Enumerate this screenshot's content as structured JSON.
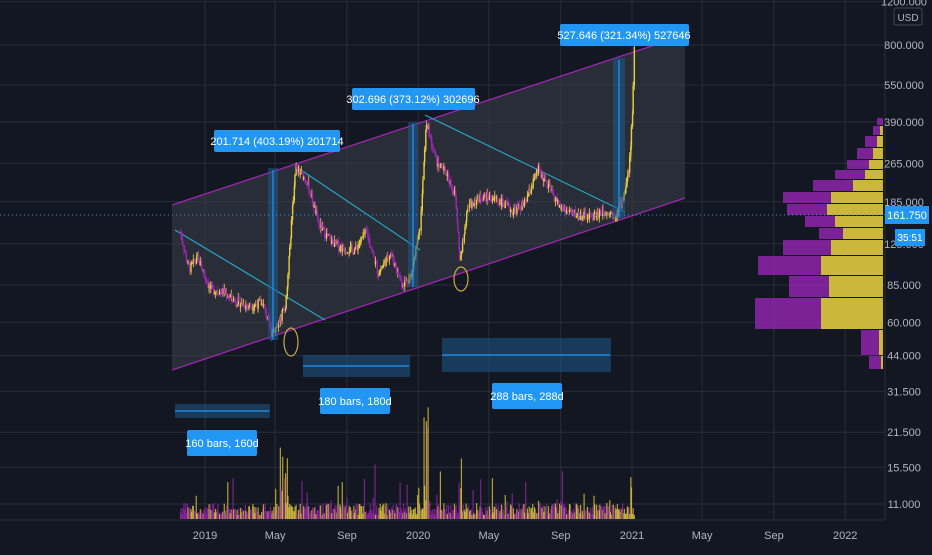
{
  "colors": {
    "background": "#131722",
    "grid": "#2a2e39",
    "channel_line": "#9c27b0",
    "channel_fill": "#3d3f48",
    "trend_line": "#26a5c9",
    "candle_up": "#e6cf3c",
    "candle_down": "#9c27b0",
    "measure_box": "#1e5a8c",
    "label_bg": "#2196f3",
    "label_text": "#ffffff",
    "price_marker": "#2196f3",
    "axis_text": "#b2b5be",
    "profile_purple": "#8e24aa",
    "profile_yellow": "#d4c832",
    "ellipse": "#c8a94a"
  },
  "axis": {
    "currency": "USD",
    "y_ticks": [
      "1200.000",
      "800.000",
      "550.000",
      "390.000",
      "265.000",
      "185.000",
      "125.000",
      "85.000",
      "60.000",
      "44.000",
      "31.500",
      "21.500",
      "15.500",
      "11.000"
    ],
    "x_ticks": [
      "2019",
      "May",
      "Sep",
      "2020",
      "May",
      "Sep",
      "2021",
      "May",
      "Sep",
      "2022"
    ]
  },
  "price_marker": {
    "price": "161.750",
    "countdown": "35:51"
  },
  "annotations": {
    "measure_1": "201.714 (403.19%) 201714",
    "measure_2": "302.696 (373.12%) 302696",
    "measure_3": "527.646 (321.34%) 527646",
    "range_1": "160 bars, 160d",
    "range_2": "180 bars, 180d",
    "range_3": "288 bars, 288d"
  },
  "chart_data": {
    "type": "line",
    "scale": "log",
    "y_range": [
      10,
      1200
    ],
    "x_range": [
      "2018-11-01",
      "2022-03-01"
    ],
    "series": [
      {
        "x": [
          "2018-11-20",
          "2018-12-05",
          "2018-12-20",
          "2019-01-10",
          "2019-02-01",
          "2019-02-20",
          "2019-03-15",
          "2019-04-10",
          "2019-04-25",
          "2019-05-05",
          "2019-05-20",
          "2019-06-05",
          "2019-06-25",
          "2019-07-15",
          "2019-08-05",
          "2019-08-25",
          "2019-09-15",
          "2019-10-05",
          "2019-10-25",
          "2019-11-15",
          "2019-12-05",
          "2019-12-20",
          "2020-01-05",
          "2020-01-15",
          "2020-02-01",
          "2020-02-20",
          "2020-03-05",
          "2020-03-13",
          "2020-03-25",
          "2020-04-20",
          "2020-05-15",
          "2020-06-10",
          "2020-07-01",
          "2020-07-25",
          "2020-08-15",
          "2020-09-01",
          "2020-09-25",
          "2020-10-20",
          "2020-11-15",
          "2020-12-05",
          "2020-12-15",
          "2020-12-22",
          "2020-12-28",
          "2021-01-02",
          "2021-01-05"
        ],
        "y": [
          140,
          98,
          110,
          82,
          80,
          74,
          70,
          72,
          55,
          58,
          72,
          255,
          225,
          150,
          128,
          120,
          118,
          140,
          95,
          115,
          86,
          92,
          145,
          390,
          270,
          240,
          195,
          105,
          175,
          195,
          190,
          170,
          180,
          250,
          205,
          175,
          165,
          160,
          170,
          165,
          185,
          215,
          260,
          420,
          780
        ]
      }
    ]
  }
}
